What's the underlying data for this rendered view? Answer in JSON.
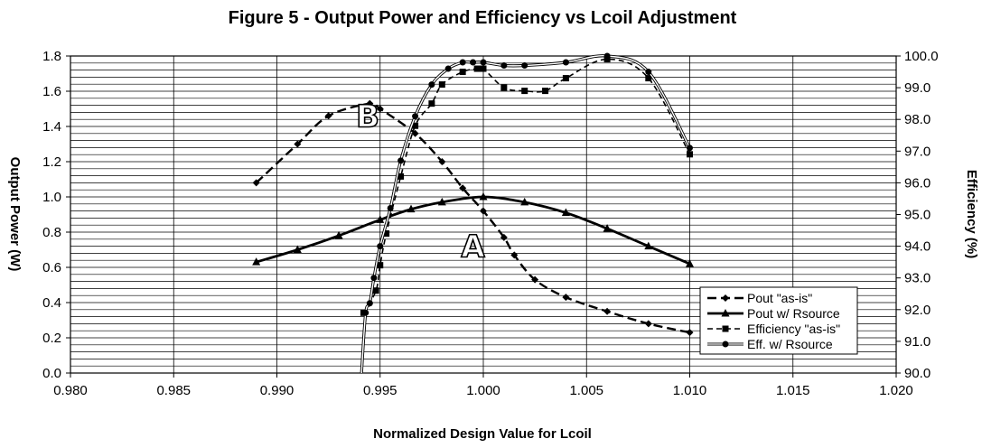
{
  "chart_data": {
    "type": "line",
    "title": "Figure 5 - Output Power and Efficiency vs Lcoil Adjustment",
    "xlabel": "Normalized Design Value for Lcoil",
    "ylabel_left": "Output Power (W)",
    "ylabel_right": "Efficiency (%)",
    "xlim": [
      0.98,
      1.02
    ],
    "ylim_left": [
      0.0,
      1.8
    ],
    "ylim_right": [
      90.0,
      100.0
    ],
    "x_ticks": [
      "0.980",
      "0.985",
      "0.990",
      "0.995",
      "1.000",
      "1.005",
      "1.010",
      "1.015",
      "1.020"
    ],
    "y_ticks_left": [
      "0.0",
      "0.2",
      "0.4",
      "0.6",
      "0.8",
      "1.0",
      "1.2",
      "1.4",
      "1.6",
      "1.8"
    ],
    "y_ticks_right": [
      "90.0",
      "91.0",
      "92.0",
      "93.0",
      "94.0",
      "95.0",
      "96.0",
      "97.0",
      "98.0",
      "99.0",
      "100.0"
    ],
    "grid": {
      "horizontal": true,
      "vertical": true
    },
    "legend_position": "bottom-right",
    "annotations": [
      {
        "text": "A",
        "x": 0.9995,
        "y": 0.72
      },
      {
        "text": "B",
        "x": 0.9944,
        "y": 1.46
      }
    ],
    "series": [
      {
        "name": "Pout \"as-is\"",
        "axis": "left",
        "marker": "diamond",
        "line": "dash",
        "x": [
          0.989,
          0.991,
          0.9925,
          0.9945,
          0.995,
          0.9967,
          0.998,
          0.999,
          1.0,
          1.001,
          1.0015,
          1.0025,
          1.004,
          1.006,
          1.008,
          1.01
        ],
        "y": [
          1.08,
          1.3,
          1.46,
          1.53,
          1.5,
          1.36,
          1.2,
          1.05,
          0.92,
          0.77,
          0.67,
          0.53,
          0.43,
          0.35,
          0.28,
          0.23
        ]
      },
      {
        "name": "Pout w/ Rsource",
        "axis": "left",
        "marker": "triangle",
        "line": "solid",
        "x": [
          0.989,
          0.991,
          0.993,
          0.995,
          0.9965,
          0.998,
          1.0,
          1.002,
          1.004,
          1.006,
          1.008,
          1.01
        ],
        "y": [
          0.63,
          0.7,
          0.78,
          0.87,
          0.93,
          0.97,
          1.0,
          0.97,
          0.91,
          0.82,
          0.72,
          0.62
        ]
      },
      {
        "name": "Efficiency \"as-is\"",
        "axis": "right",
        "marker": "square",
        "line": "dash",
        "x": [
          0.9942,
          0.9948,
          0.995,
          0.9953,
          0.996,
          0.9967,
          0.9975,
          0.998,
          0.999,
          0.9997,
          1.0,
          1.001,
          1.002,
          1.003,
          1.004,
          1.006,
          1.008,
          1.01
        ],
        "y": [
          91.9,
          92.6,
          93.4,
          94.4,
          96.2,
          97.8,
          98.5,
          99.1,
          99.5,
          99.6,
          99.6,
          99.0,
          98.9,
          98.9,
          99.3,
          99.9,
          99.3,
          96.9
        ]
      },
      {
        "name": "Eff. w/ Rsource",
        "axis": "right",
        "marker": "circle",
        "line": "solid",
        "x": [
          0.9941,
          0.9943,
          0.9945,
          0.9947,
          0.995,
          0.9955,
          0.996,
          0.9967,
          0.9975,
          0.9983,
          0.999,
          0.9995,
          1.0,
          1.001,
          1.002,
          1.004,
          1.006,
          1.008,
          1.01
        ],
        "y": [
          90.0,
          91.9,
          92.2,
          93.0,
          94.0,
          95.2,
          96.7,
          98.1,
          99.1,
          99.6,
          99.8,
          99.8,
          99.8,
          99.7,
          99.7,
          99.8,
          100.0,
          99.5,
          97.1
        ]
      }
    ]
  }
}
